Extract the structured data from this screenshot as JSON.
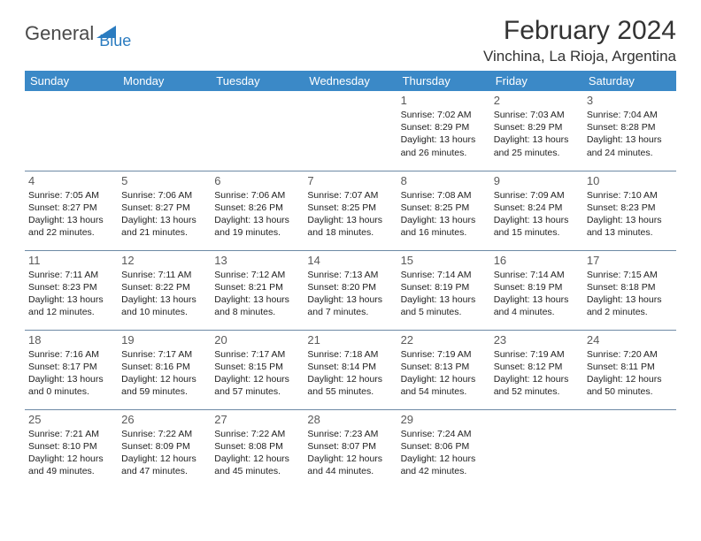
{
  "logo": {
    "text1": "General",
    "text2": "Blue"
  },
  "title": "February 2024",
  "location": "Vinchina, La Rioja, Argentina",
  "colors": {
    "header_bg": "#3b89c7",
    "header_text": "#ffffff",
    "border": "#6d8aa5",
    "logo_gray": "#4a4a4a",
    "logo_blue": "#2b7cc0"
  },
  "weekdays": [
    "Sunday",
    "Monday",
    "Tuesday",
    "Wednesday",
    "Thursday",
    "Friday",
    "Saturday"
  ],
  "days": {
    "1": {
      "sunrise": "7:02 AM",
      "sunset": "8:29 PM",
      "daylight": "13 hours and 26 minutes."
    },
    "2": {
      "sunrise": "7:03 AM",
      "sunset": "8:29 PM",
      "daylight": "13 hours and 25 minutes."
    },
    "3": {
      "sunrise": "7:04 AM",
      "sunset": "8:28 PM",
      "daylight": "13 hours and 24 minutes."
    },
    "4": {
      "sunrise": "7:05 AM",
      "sunset": "8:27 PM",
      "daylight": "13 hours and 22 minutes."
    },
    "5": {
      "sunrise": "7:06 AM",
      "sunset": "8:27 PM",
      "daylight": "13 hours and 21 minutes."
    },
    "6": {
      "sunrise": "7:06 AM",
      "sunset": "8:26 PM",
      "daylight": "13 hours and 19 minutes."
    },
    "7": {
      "sunrise": "7:07 AM",
      "sunset": "8:25 PM",
      "daylight": "13 hours and 18 minutes."
    },
    "8": {
      "sunrise": "7:08 AM",
      "sunset": "8:25 PM",
      "daylight": "13 hours and 16 minutes."
    },
    "9": {
      "sunrise": "7:09 AM",
      "sunset": "8:24 PM",
      "daylight": "13 hours and 15 minutes."
    },
    "10": {
      "sunrise": "7:10 AM",
      "sunset": "8:23 PM",
      "daylight": "13 hours and 13 minutes."
    },
    "11": {
      "sunrise": "7:11 AM",
      "sunset": "8:23 PM",
      "daylight": "13 hours and 12 minutes."
    },
    "12": {
      "sunrise": "7:11 AM",
      "sunset": "8:22 PM",
      "daylight": "13 hours and 10 minutes."
    },
    "13": {
      "sunrise": "7:12 AM",
      "sunset": "8:21 PM",
      "daylight": "13 hours and 8 minutes."
    },
    "14": {
      "sunrise": "7:13 AM",
      "sunset": "8:20 PM",
      "daylight": "13 hours and 7 minutes."
    },
    "15": {
      "sunrise": "7:14 AM",
      "sunset": "8:19 PM",
      "daylight": "13 hours and 5 minutes."
    },
    "16": {
      "sunrise": "7:14 AM",
      "sunset": "8:19 PM",
      "daylight": "13 hours and 4 minutes."
    },
    "17": {
      "sunrise": "7:15 AM",
      "sunset": "8:18 PM",
      "daylight": "13 hours and 2 minutes."
    },
    "18": {
      "sunrise": "7:16 AM",
      "sunset": "8:17 PM",
      "daylight": "13 hours and 0 minutes."
    },
    "19": {
      "sunrise": "7:17 AM",
      "sunset": "8:16 PM",
      "daylight": "12 hours and 59 minutes."
    },
    "20": {
      "sunrise": "7:17 AM",
      "sunset": "8:15 PM",
      "daylight": "12 hours and 57 minutes."
    },
    "21": {
      "sunrise": "7:18 AM",
      "sunset": "8:14 PM",
      "daylight": "12 hours and 55 minutes."
    },
    "22": {
      "sunrise": "7:19 AM",
      "sunset": "8:13 PM",
      "daylight": "12 hours and 54 minutes."
    },
    "23": {
      "sunrise": "7:19 AM",
      "sunset": "8:12 PM",
      "daylight": "12 hours and 52 minutes."
    },
    "24": {
      "sunrise": "7:20 AM",
      "sunset": "8:11 PM",
      "daylight": "12 hours and 50 minutes."
    },
    "25": {
      "sunrise": "7:21 AM",
      "sunset": "8:10 PM",
      "daylight": "12 hours and 49 minutes."
    },
    "26": {
      "sunrise": "7:22 AM",
      "sunset": "8:09 PM",
      "daylight": "12 hours and 47 minutes."
    },
    "27": {
      "sunrise": "7:22 AM",
      "sunset": "8:08 PM",
      "daylight": "12 hours and 45 minutes."
    },
    "28": {
      "sunrise": "7:23 AM",
      "sunset": "8:07 PM",
      "daylight": "12 hours and 44 minutes."
    },
    "29": {
      "sunrise": "7:24 AM",
      "sunset": "8:06 PM",
      "daylight": "12 hours and 42 minutes."
    }
  },
  "grid": [
    [
      null,
      null,
      null,
      null,
      "1",
      "2",
      "3"
    ],
    [
      "4",
      "5",
      "6",
      "7",
      "8",
      "9",
      "10"
    ],
    [
      "11",
      "12",
      "13",
      "14",
      "15",
      "16",
      "17"
    ],
    [
      "18",
      "19",
      "20",
      "21",
      "22",
      "23",
      "24"
    ],
    [
      "25",
      "26",
      "27",
      "28",
      "29",
      null,
      null
    ]
  ],
  "labels": {
    "sunrise": "Sunrise: ",
    "sunset": "Sunset: ",
    "daylight": "Daylight: "
  }
}
